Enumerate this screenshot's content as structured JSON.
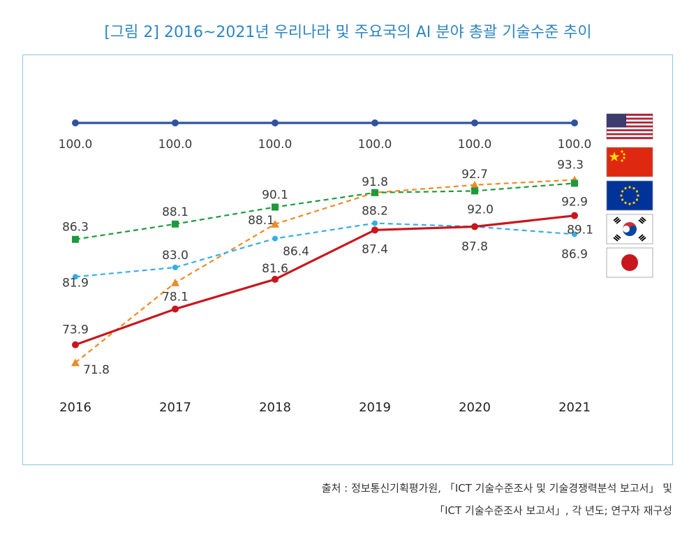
{
  "title": "[그림 2] 2016~2021년 우리나라 및 주요국의 AI 분야 총괄 기술수준 추이",
  "source_line1": "출처 : 정보통신기획평가원, 「ICT 기술수준조사 및 기술경쟁력분석 보고서」 및",
  "source_line2": "「ICT 기술수준조사 보고서」, 각 년도; 연구자 재구성",
  "legend_flags": [
    {
      "icon": "usa-flag-icon"
    },
    {
      "icon": "china-flag-icon"
    },
    {
      "icon": "eu-flag-icon"
    },
    {
      "icon": "korea-flag-icon"
    },
    {
      "icon": "japan-flag-icon"
    }
  ],
  "chart_data": {
    "type": "line",
    "x": [
      "2016",
      "2017",
      "2018",
      "2019",
      "2020",
      "2021"
    ],
    "ylim": [
      70,
      101
    ],
    "series": [
      {
        "key": "usa",
        "color": "#2f52a0",
        "style": "solid",
        "marker": "circle",
        "values": [
          100.0,
          100.0,
          100.0,
          100.0,
          100.0,
          100.0
        ],
        "labels": [
          "100.0",
          "100.0",
          "100.0",
          "100.0",
          "100.0",
          "100.0"
        ]
      },
      {
        "key": "china",
        "color": "#f08a24",
        "style": "dashed",
        "marker": "triangle",
        "values": [
          71.8,
          81.2,
          88.1,
          91.8,
          92.7,
          93.3
        ],
        "labels": [
          "71.8",
          "",
          "88.1",
          "91.8",
          "92.7",
          "93.3"
        ]
      },
      {
        "key": "eu",
        "color": "#1e9a3e",
        "style": "dashed",
        "marker": "square",
        "values": [
          86.3,
          88.1,
          90.1,
          91.8,
          92.0,
          92.9
        ],
        "labels": [
          "86.3",
          "88.1",
          "90.1",
          "",
          "92.0",
          "92.9"
        ]
      },
      {
        "key": "japan",
        "color": "#35aee6",
        "style": "dashed",
        "marker": "circle",
        "values": [
          81.9,
          83.0,
          86.4,
          88.2,
          87.8,
          86.9
        ],
        "labels": [
          "81.9",
          "83.0",
          "86.4",
          "88.2",
          "87.8",
          "86.9"
        ]
      },
      {
        "key": "korea",
        "color": "#c8161d",
        "style": "solid",
        "marker": "circle",
        "values": [
          73.9,
          78.1,
          81.6,
          87.4,
          87.8,
          89.1
        ],
        "labels": [
          "73.9",
          "78.1",
          "81.6",
          "87.4",
          "",
          "89.1"
        ]
      }
    ]
  }
}
